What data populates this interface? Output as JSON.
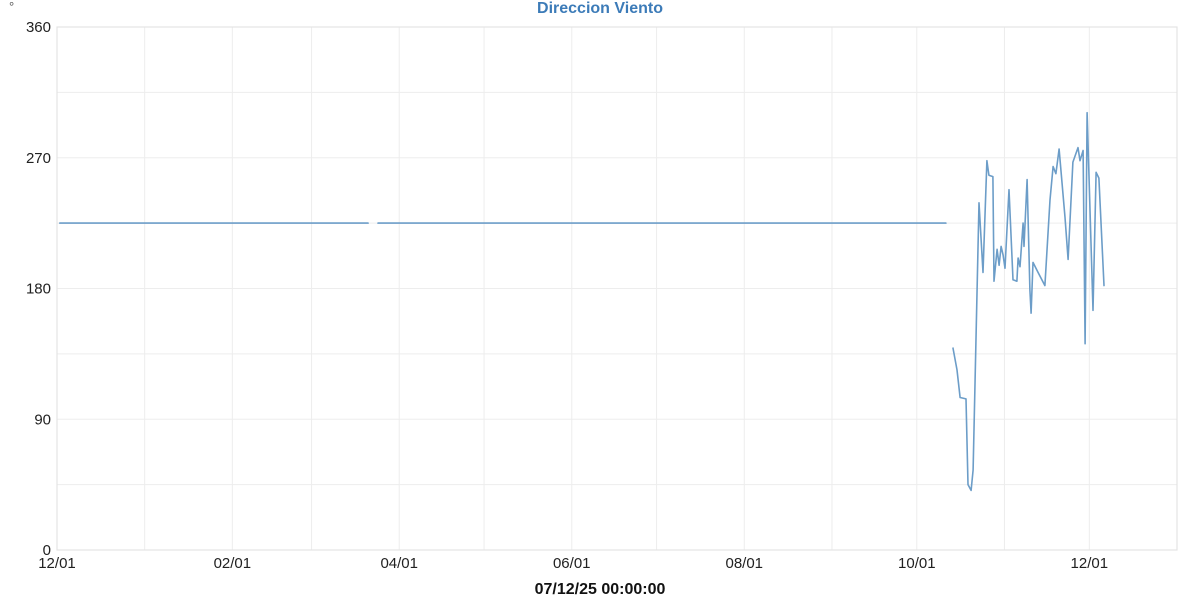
{
  "chart_data": {
    "type": "line",
    "title": "Direccion Viento",
    "unit": "°",
    "footer_timestamp": "07/12/25 00:00:00",
    "title_color": "#3c7bb8",
    "line_color": "#6c9dc8",
    "grid_color": "#ededed",
    "border_color": "#e4e4e4",
    "grid": true,
    "legend": "none",
    "x_axis": {
      "type": "time",
      "date_format": "MM/DD",
      "min_day": 0,
      "max_day": 396,
      "gridline_days": [
        0,
        31,
        62,
        90,
        121,
        151,
        182,
        212,
        243,
        274,
        304,
        335,
        365,
        396
      ],
      "ticks": [
        {
          "day": 0,
          "label": "12/01"
        },
        {
          "day": 62,
          "label": "02/01"
        },
        {
          "day": 121,
          "label": "04/01"
        },
        {
          "day": 182,
          "label": "06/01"
        },
        {
          "day": 243,
          "label": "08/01"
        },
        {
          "day": 304,
          "label": "10/01"
        },
        {
          "day": 365,
          "label": "12/01"
        }
      ]
    },
    "y_axis": {
      "min": 0,
      "max": 360,
      "grid_step": 45,
      "ticks": [
        0,
        90,
        180,
        270,
        360
      ],
      "unit": "°"
    },
    "series": [
      {
        "name": "Direccion Viento",
        "color": "#6c9dc8",
        "segments": [
          [
            [
              1,
              225
            ],
            [
              110,
              225
            ]
          ],
          [
            [
              113.5,
              225
            ],
            [
              314.3,
              225
            ]
          ],
          [
            [
              316.8,
              139
            ],
            [
              318.2,
              124
            ],
            [
              319.3,
              105
            ],
            [
              321.4,
              104
            ],
            [
              322.1,
              45
            ],
            [
              323.2,
              41
            ],
            [
              323.9,
              55
            ],
            [
              326.0,
              239
            ],
            [
              327.4,
              191
            ],
            [
              328.8,
              268
            ],
            [
              329.5,
              258
            ],
            [
              330.9,
              257
            ],
            [
              331.3,
              185
            ],
            [
              332.4,
              207
            ],
            [
              333.1,
              196
            ],
            [
              333.8,
              209
            ],
            [
              334.5,
              203
            ],
            [
              335.2,
              194
            ],
            [
              336.6,
              248
            ],
            [
              338.0,
              186
            ],
            [
              339.4,
              185
            ],
            [
              339.8,
              201
            ],
            [
              340.5,
              195
            ],
            [
              341.6,
              225
            ],
            [
              341.9,
              209
            ],
            [
              343.0,
              255
            ],
            [
              344.0,
              179
            ],
            [
              344.4,
              163
            ],
            [
              345.1,
              198
            ],
            [
              346.9,
              191
            ],
            [
              349.3,
              182
            ],
            [
              351.1,
              241
            ],
            [
              352.2,
              264
            ],
            [
              353.2,
              259
            ],
            [
              354.3,
              276
            ],
            [
              356.4,
              229
            ],
            [
              357.5,
              200
            ],
            [
              359.2,
              267
            ],
            [
              361.0,
              277
            ],
            [
              361.7,
              268
            ],
            [
              362.8,
              275
            ],
            [
              363.5,
              142
            ],
            [
              364.2,
              301
            ],
            [
              366.3,
              165
            ],
            [
              367.4,
              260
            ],
            [
              368.4,
              256
            ],
            [
              370.2,
              182
            ]
          ]
        ]
      }
    ]
  }
}
